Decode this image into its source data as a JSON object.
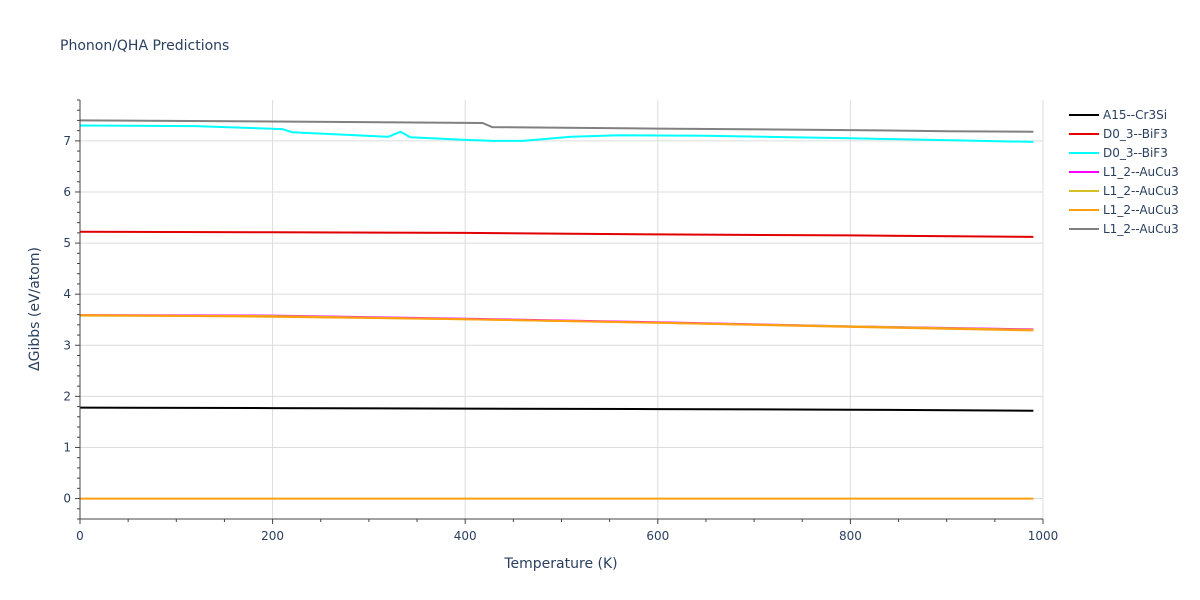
{
  "chart_data": {
    "type": "line",
    "title": "Phonon/QHA Predictions",
    "xlabel": "Temperature (K)",
    "ylabel": "ΔGibbs (eV/atom)",
    "xlim": [
      0,
      1000
    ],
    "ylim": [
      -0.4,
      7.8
    ],
    "xticks": [
      0,
      200,
      400,
      600,
      800,
      1000
    ],
    "yticks": [
      0,
      1,
      2,
      3,
      4,
      5,
      6,
      7
    ],
    "grid": true,
    "legend_position": "top-right",
    "series": [
      {
        "name": "A15--Cr3Si",
        "color": "#000000",
        "x": [
          0,
          200,
          400,
          600,
          800,
          990
        ],
        "y": [
          1.78,
          1.77,
          1.76,
          1.75,
          1.74,
          1.72
        ]
      },
      {
        "name": "D0_3--BiF3",
        "color": "#e00000",
        "x": [
          0,
          200,
          400,
          600,
          800,
          990
        ],
        "y": [
          5.22,
          5.21,
          5.2,
          5.17,
          5.15,
          5.12
        ]
      },
      {
        "name": "D0_3--BiF3",
        "color": "#00ffff",
        "x": [
          0,
          120,
          210,
          220,
          320,
          333,
          343,
          400,
          430,
          460,
          510,
          560,
          650,
          800,
          990
        ],
        "y": [
          7.3,
          7.29,
          7.23,
          7.17,
          7.08,
          7.18,
          7.07,
          7.02,
          7.0,
          7.0,
          7.08,
          7.11,
          7.1,
          7.05,
          6.98
        ]
      },
      {
        "name": "L1_2--AuCu3",
        "color": "#ff00ff",
        "x": [
          0,
          200,
          400,
          600,
          800,
          990
        ],
        "y": [
          3.59,
          3.58,
          3.52,
          3.45,
          3.37,
          3.31
        ]
      },
      {
        "name": "L1_2--AuCu3",
        "color": "#d4c020",
        "x": [
          0,
          200,
          400,
          600,
          800,
          990
        ],
        "y": [
          3.58,
          3.57,
          3.51,
          3.44,
          3.37,
          3.3
        ]
      },
      {
        "name": "L1_2--AuCu3",
        "color": "#ff9f10",
        "x": [
          0,
          200,
          400,
          600,
          800,
          990
        ],
        "y": [
          3.59,
          3.56,
          3.51,
          3.44,
          3.36,
          3.29
        ]
      },
      {
        "name": "L1_2--AuCu3",
        "color": "#808080",
        "x": [
          0,
          200,
          418,
          428,
          600,
          800,
          900,
          990
        ],
        "y": [
          7.4,
          7.38,
          7.35,
          7.27,
          7.24,
          7.21,
          7.19,
          7.18
        ]
      },
      {
        "name": "",
        "color": "#ff9f10",
        "x": [
          0,
          990
        ],
        "y": [
          0,
          0
        ]
      }
    ]
  }
}
